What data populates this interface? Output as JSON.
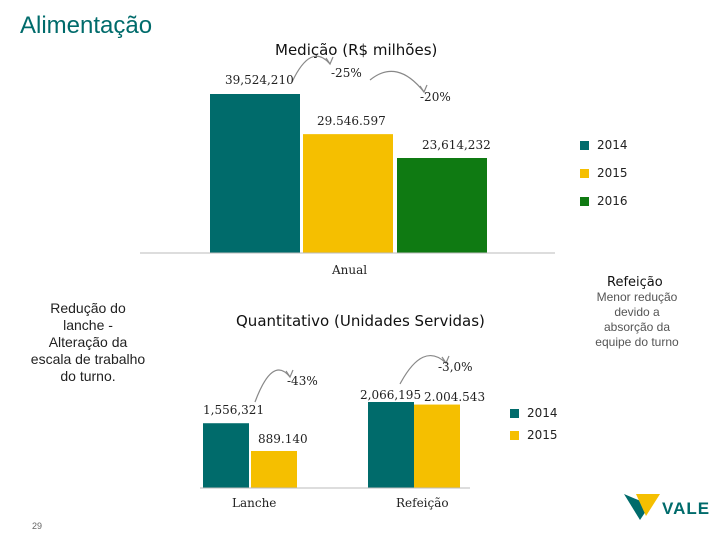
{
  "page": {
    "title": "Alimentação",
    "page_number": "29",
    "logo_text": "VALE"
  },
  "colors": {
    "y2014": "#006b6b",
    "y2015": "#f5bf00",
    "y2016": "#0f7a12"
  },
  "chart_data": [
    {
      "type": "bar",
      "title": "Medição (R$ milhões)",
      "categories": [
        "Anual"
      ],
      "series": [
        {
          "name": "2014",
          "values": [
            39524.21
          ],
          "label": "39,524,210"
        },
        {
          "name": "2015",
          "values": [
            29546.597
          ],
          "label": "29.546.597"
        },
        {
          "name": "2016",
          "values": [
            23614.232
          ],
          "label": "23,614,232"
        }
      ],
      "annotations": [
        "-25%",
        "-20%"
      ],
      "xlabel": "Anual",
      "ylim": [
        0,
        40000
      ],
      "legend": [
        "2014",
        "2015",
        "2016"
      ]
    },
    {
      "type": "bar",
      "title": "Quantitativo (Unidades Servidas)",
      "categories": [
        "Lanche",
        "Refeição"
      ],
      "series": [
        {
          "name": "2014",
          "values": [
            1556321,
            2066195
          ],
          "labels": [
            "1,556,321",
            "2,066,195"
          ]
        },
        {
          "name": "2015",
          "values": [
            889140,
            2004543
          ],
          "labels": [
            "889.140",
            "2.004.543"
          ]
        }
      ],
      "annotations": [
        "-43%",
        "-3,0%"
      ],
      "ylim": [
        0,
        2100000
      ],
      "legend": [
        "2014",
        "2015"
      ]
    }
  ],
  "notes": {
    "left_bold": "Redução do lanche -",
    "left_text": "Alteração da escala de trabalho do turno.",
    "right_title": "Refeição",
    "right_text": "Menor redução devido a absorção da equipe do turno"
  }
}
